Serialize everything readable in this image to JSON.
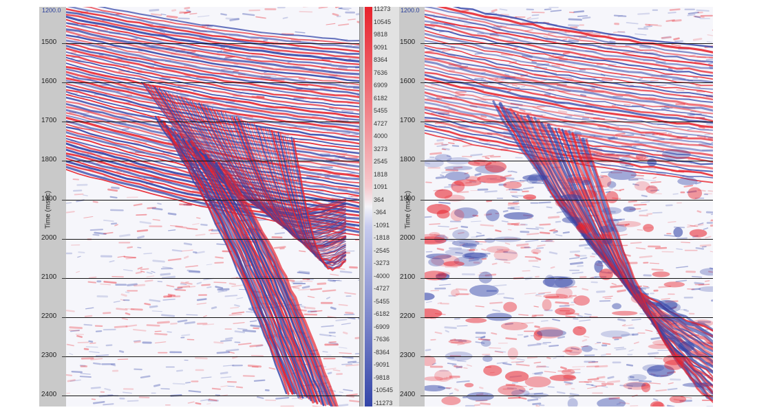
{
  "left_panel": {
    "axis_title": "Time (msec)",
    "start_label": "1200.0",
    "time_ticks": [
      "1500",
      "1600",
      "1700",
      "1800",
      "1900",
      "2000",
      "2100",
      "2200",
      "2300",
      "2400"
    ]
  },
  "right_panel": {
    "axis_title": "Time (msec)",
    "start_label": "1200.0",
    "time_ticks": [
      "1500",
      "1600",
      "1700",
      "1800",
      "1900",
      "2000",
      "2100",
      "2200",
      "2300",
      "2400"
    ]
  },
  "colorbar": {
    "labels": [
      "11273",
      "10545",
      "9818",
      "9091",
      "8364",
      "7636",
      "6909",
      "6182",
      "5455",
      "4727",
      "4000",
      "3273",
      "2545",
      "1818",
      "1091",
      "364",
      "-364",
      "-1091",
      "-1818",
      "-2545",
      "-3273",
      "-4000",
      "-4727",
      "-5455",
      "-6182",
      "-6909",
      "-7636",
      "-8364",
      "-9091",
      "-9818",
      "-10545",
      "-11273"
    ],
    "colors": {
      "positive": "#e8222c",
      "zero": "#f4f4f8",
      "negative": "#3445a8"
    }
  }
}
